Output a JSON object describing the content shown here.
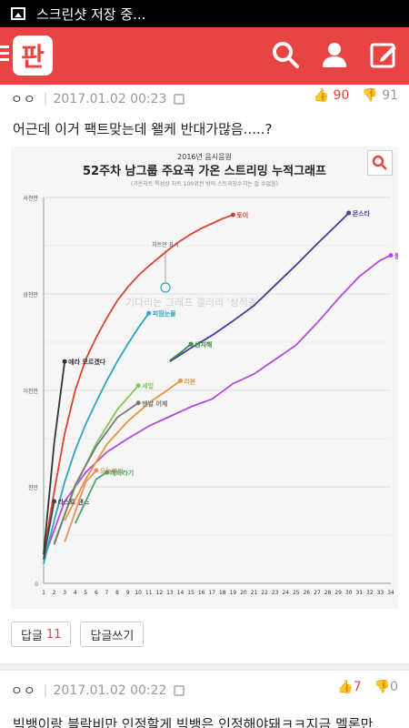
{
  "statusbar": {
    "text": "스크린샷 저장 중..."
  },
  "appbar": {
    "logo": "판",
    "icons": [
      "search-icon",
      "user-icon",
      "write-icon"
    ]
  },
  "comment1": {
    "user": "ㅇㅇ",
    "date": "2017.01.02 00:23",
    "up": "90",
    "down": "91",
    "text": "어근데 이거 팩트맞는데 왤케 반대가많음.....?"
  },
  "buttons": {
    "reply_label": "답글",
    "reply_count": "11",
    "write_reply_label": "답글쓰기"
  },
  "comment2": {
    "user": "ㅇㅇ",
    "date": "2017.01.02 00:22",
    "up": "7",
    "down": "0",
    "text": "빅뱅이랑 블락비만 인정할게 빅뱅은 인정해야돼ㅋㅋ지금 멜론만"
  },
  "chart_data": {
    "type": "line",
    "title": "52주차 남그룹 주요곡 가온 스트리밍 누적그래프",
    "subtitle": "2016년 음시음원",
    "note": "(가온차트 특성상 차트 100위권 밖의 스트리밍수치는 잡 수없음)",
    "watermark": "기다리는 그래프 갤러리 '성적충'",
    "annotation": "차트인 표시",
    "y_ticks": [
      "0",
      "천만",
      "이천만",
      "삼천만",
      "사천만"
    ],
    "ylim": [
      0,
      40000000
    ],
    "x_ticks": [
      1,
      2,
      3,
      4,
      5,
      6,
      7,
      8,
      9,
      10,
      11,
      12,
      13,
      14,
      15,
      16,
      17,
      18,
      19,
      20,
      21,
      22,
      23,
      24,
      25,
      26,
      27,
      28,
      29,
      30,
      31,
      32,
      33,
      34
    ],
    "series": [
      {
        "name": "토이",
        "color": "#d9442f",
        "x": [
          1,
          2,
          3,
          4,
          5,
          6,
          7,
          8,
          9,
          10,
          11,
          12,
          13,
          14,
          15,
          16,
          17,
          18,
          19
        ],
        "y": [
          3000000,
          9500000,
          15500000,
          20000000,
          23200000,
          25500000,
          27500000,
          29300000,
          30700000,
          31900000,
          32900000,
          33800000,
          34700000,
          35500000,
          36200000,
          36800000,
          37300000,
          37800000,
          38200000
        ]
      },
      {
        "name": "몬스타",
        "color": "#4a3a9c",
        "x": [
          13,
          15,
          17,
          19,
          21,
          23,
          25,
          27,
          29,
          30
        ],
        "y": [
          23000000,
          24400000,
          25700000,
          27200000,
          28800000,
          30900000,
          33000000,
          35200000,
          37300000,
          38400000
        ]
      },
      {
        "name": "불타오르네",
        "color": "#b44be0",
        "x": [
          1,
          3,
          5,
          7,
          9,
          11,
          13,
          15,
          17,
          19,
          21,
          23,
          25,
          27,
          29,
          31,
          33,
          34
        ],
        "y": [
          2500000,
          8500000,
          11500000,
          13600000,
          15000000,
          16300000,
          17300000,
          18300000,
          19100000,
          20700000,
          21700000,
          23200000,
          24700000,
          27000000,
          29500000,
          31800000,
          33500000,
          34000000
        ]
      },
      {
        "name": "피땀눈물",
        "color": "#2aa5c2",
        "x": [
          1,
          2,
          3,
          4,
          5,
          6,
          7,
          8,
          9,
          10,
          11
        ],
        "y": [
          2000000,
          6500000,
          10500000,
          13800000,
          16500000,
          18800000,
          21000000,
          23000000,
          24800000,
          26500000,
          28000000
        ]
      },
      {
        "name": "센치해",
        "color": "#3c8f45",
        "x": [
          13,
          14,
          15
        ],
        "y": [
          23100000,
          23900000,
          24800000
        ]
      },
      {
        "name": "세잎",
        "color": "#7fc94f",
        "x": [
          2,
          4,
          6,
          8,
          10
        ],
        "y": [
          4200000,
          10000000,
          14500000,
          18000000,
          20500000
        ]
      },
      {
        "name": "리본",
        "color": "#e8963c",
        "x": [
          3,
          5,
          7,
          9,
          11,
          13,
          14
        ],
        "y": [
          6500000,
          10800000,
          14400000,
          16800000,
          18700000,
          20200000,
          21000000
        ]
      },
      {
        "name": "맨날 어제",
        "color": "#777777",
        "x": [
          2,
          4,
          6,
          8,
          10
        ],
        "y": [
          4000000,
          10200000,
          14200000,
          17200000,
          18700000
        ]
      },
      {
        "name": "에라 모르겠다",
        "color": "#333333",
        "x": [
          1,
          2,
          3
        ],
        "y": [
          3000000,
          14500000,
          23000000
        ]
      },
      {
        "name": "라스트 댄스",
        "color": "#444444",
        "x": [
          1,
          2
        ],
        "y": [
          2500000,
          8500000
        ]
      },
      {
        "name": "오늘부터",
        "color": "#e89060",
        "x": [
          3,
          5,
          6
        ],
        "y": [
          4300000,
          10500000,
          11700000
        ]
      },
      {
        "name": "해바라기",
        "color": "#4aa56a",
        "x": [
          4,
          6,
          7
        ],
        "y": [
          6200000,
          10800000,
          11500000
        ]
      }
    ]
  }
}
